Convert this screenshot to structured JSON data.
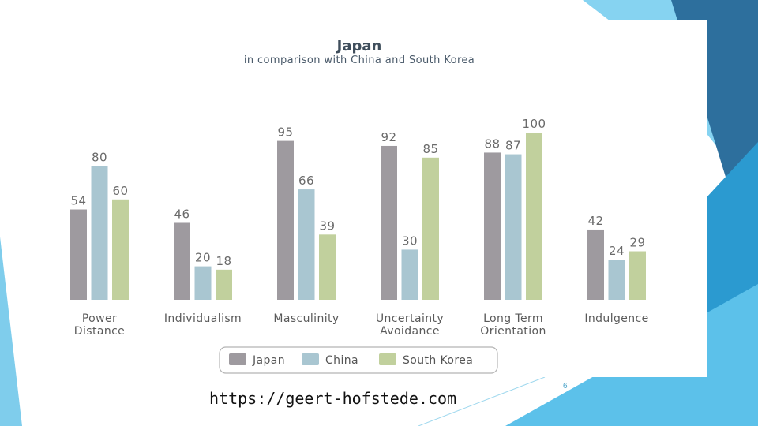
{
  "chart_data": {
    "type": "bar",
    "title": "Japan",
    "subtitle": "in comparison with China and South Korea",
    "categories": [
      [
        "Power",
        "Distance"
      ],
      [
        "Individualism"
      ],
      [
        "Masculinity"
      ],
      [
        "Uncertainty",
        "Avoidance"
      ],
      [
        "Long Term",
        "Orientation"
      ],
      [
        "Indulgence"
      ]
    ],
    "series": [
      {
        "name": "Japan",
        "color": "#9e9a9f",
        "values": [
          54,
          46,
          95,
          92,
          88,
          42
        ]
      },
      {
        "name": "China",
        "color": "#a9c6d1",
        "values": [
          80,
          20,
          66,
          30,
          87,
          24
        ]
      },
      {
        "name": "South Korea",
        "color": "#c1d09d",
        "values": [
          60,
          18,
          39,
          85,
          100,
          29
        ]
      }
    ],
    "ylim": [
      0,
      100
    ],
    "grid": false,
    "legend_position": "bottom-center"
  },
  "footer": {
    "source_url": "https://geert-hofstede.com",
    "slide_number": "6"
  },
  "theme": {
    "accent_dark": "#2a6c9c",
    "accent_light": "#7fd0f0"
  }
}
